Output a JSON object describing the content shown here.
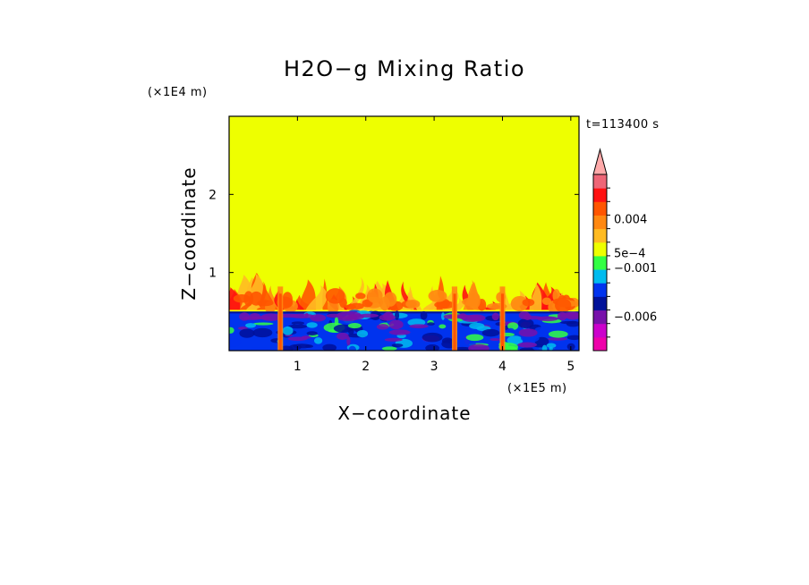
{
  "chart_data": {
    "type": "heatmap",
    "title": "H2O−g Mixing Ratio",
    "xlabel": "X−coordinate",
    "ylabel": "Z−coordinate",
    "x_unit": "(×1E5 m)",
    "y_unit": "(×1E4 m)",
    "time_label": "t=113400 s",
    "xlim": [
      0,
      5.12
    ],
    "ylim": [
      0,
      3.0
    ],
    "x_ticks": [
      {
        "value": 1,
        "label": "1"
      },
      {
        "value": 2,
        "label": "2"
      },
      {
        "value": 3,
        "label": "3"
      },
      {
        "value": 4,
        "label": "4"
      },
      {
        "value": 5,
        "label": "5"
      }
    ],
    "y_ticks": [
      {
        "value": 1,
        "label": "1"
      },
      {
        "value": 2,
        "label": "2"
      }
    ],
    "colorbar": {
      "min": -0.0095,
      "max": 0.0085,
      "bands": [
        {
          "color": "#ee00aa"
        },
        {
          "color": "#cc00cc"
        },
        {
          "color": "#7711aa"
        },
        {
          "color": "#001199"
        },
        {
          "color": "#0033ee"
        },
        {
          "color": "#00bbee"
        },
        {
          "color": "#33ff44"
        },
        {
          "color": "#eeff00"
        },
        {
          "color": "#ffbb22"
        },
        {
          "color": "#ff8811"
        },
        {
          "color": "#ff5500"
        },
        {
          "color": "#ff1111"
        },
        {
          "color": "#ee6677"
        }
      ],
      "arrow_color": "#ffaaaa",
      "labels": [
        {
          "value": 0.004,
          "label": "0.004"
        },
        {
          "value": 0.0005,
          "label": "5e−4"
        },
        {
          "value": -0.001,
          "label": "−0.001"
        },
        {
          "value": -0.006,
          "label": "−0.006"
        }
      ]
    },
    "field": {
      "background_color": "#eeff00",
      "upper_layer_top": 1.0,
      "boundary_layer_top": 0.5,
      "updraft_x": [
        0.75,
        3.3,
        4.0
      ]
    }
  }
}
